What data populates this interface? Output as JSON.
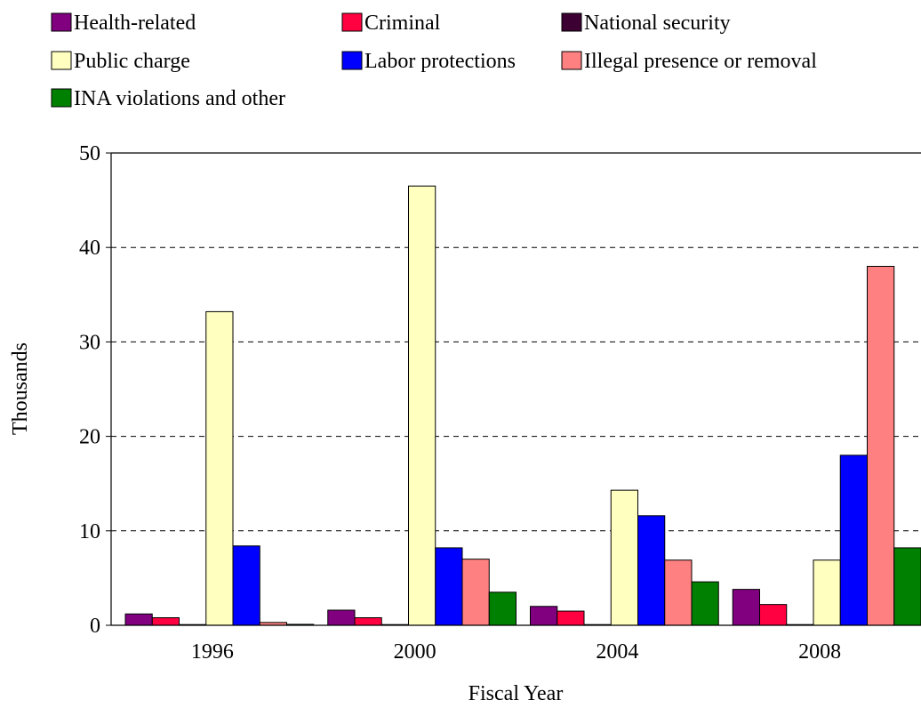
{
  "chart_data": {
    "type": "bar",
    "title": "",
    "xlabel": "Fiscal Year",
    "ylabel": "Thousands",
    "categories": [
      "1996",
      "2000",
      "2004",
      "2008"
    ],
    "ylim": [
      0,
      50
    ],
    "yticks": [
      "0",
      "10",
      "20",
      "30",
      "40",
      "50"
    ],
    "grid": true,
    "legend_position": "top",
    "series": [
      {
        "name": "Health-related",
        "color": "#800080",
        "values": [
          1.2,
          1.6,
          2.0,
          3.8
        ]
      },
      {
        "name": "Criminal",
        "color": "#FF0040",
        "values": [
          0.8,
          0.8,
          1.5,
          2.2
        ]
      },
      {
        "name": "National security",
        "color": "#3D0033",
        "values": [
          0.05,
          0.05,
          0.05,
          0.05
        ]
      },
      {
        "name": "Public charge",
        "color": "#FFFFC0",
        "values": [
          33.2,
          46.5,
          14.3,
          6.9
        ]
      },
      {
        "name": "Labor protections",
        "color": "#0000FF",
        "values": [
          8.4,
          8.2,
          11.6,
          18.0
        ]
      },
      {
        "name": "Illegal presence or removal",
        "color": "#FF8080",
        "values": [
          0.3,
          7.0,
          6.9,
          38.0
        ]
      },
      {
        "name": "INA violations and other",
        "color": "#008000",
        "values": [
          0.1,
          3.5,
          4.6,
          8.2
        ]
      }
    ]
  }
}
